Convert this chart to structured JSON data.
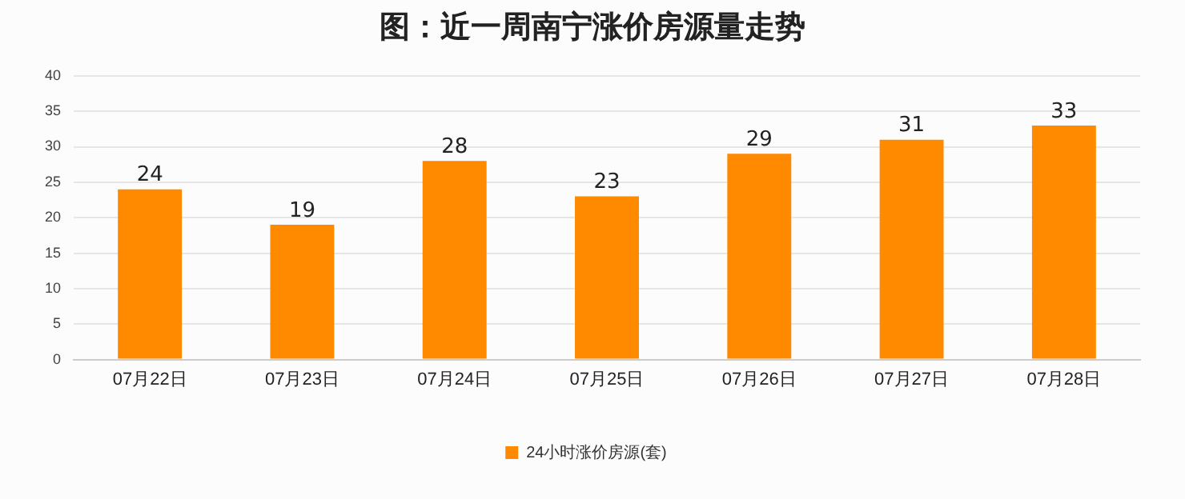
{
  "chart_data": {
    "type": "bar",
    "title": "图：近一周南宁涨价房源量走势",
    "categories": [
      "07月22日",
      "07月23日",
      "07月24日",
      "07月25日",
      "07月26日",
      "07月27日",
      "07月28日"
    ],
    "series": [
      {
        "name": "24小时涨价房源(套)",
        "color": "#ff8a00",
        "values": [
          24,
          19,
          28,
          23,
          29,
          31,
          33
        ]
      }
    ],
    "ylim": [
      0,
      40
    ],
    "yticks": [
      0,
      5,
      10,
      15,
      20,
      25,
      30,
      35,
      40
    ],
    "grid": "y",
    "legend": "bottom",
    "data_labels": true
  }
}
